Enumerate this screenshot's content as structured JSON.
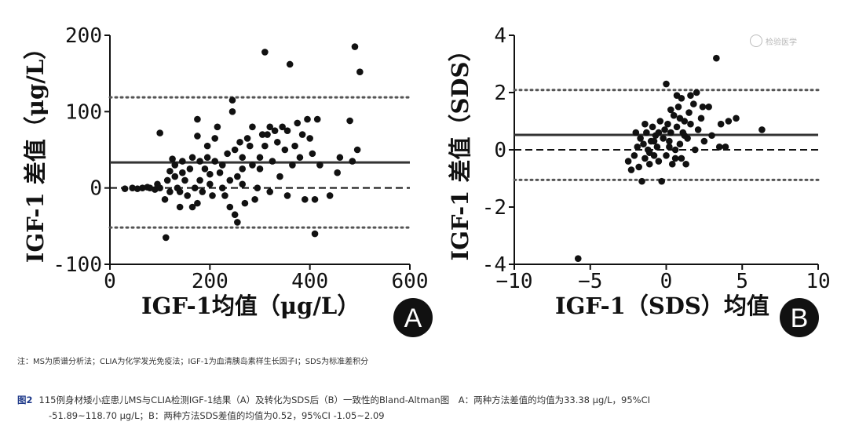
{
  "chart_data": [
    {
      "id": "A",
      "type": "scatter",
      "badge": "A",
      "xlabel": "IGF-1均值（μg/L）",
      "ylabel": "IGF-1 差值（μg/L）",
      "xlim": [
        0,
        600
      ],
      "ylim": [
        -100,
        200
      ],
      "xticks": [
        "0",
        "200",
        "400",
        "600"
      ],
      "yticks": [
        "-100",
        "0",
        "100",
        "200"
      ],
      "mean_line": 33.38,
      "upper_loa": 118.7,
      "lower_loa": -51.89,
      "zero_line": 0,
      "points": [
        [
          30,
          -1
        ],
        [
          45,
          0
        ],
        [
          55,
          -1
        ],
        [
          65,
          0
        ],
        [
          75,
          1
        ],
        [
          80,
          0
        ],
        [
          90,
          -2
        ],
        [
          95,
          5
        ],
        [
          100,
          0
        ],
        [
          100,
          72
        ],
        [
          110,
          -15
        ],
        [
          112,
          -65
        ],
        [
          115,
          10
        ],
        [
          120,
          -5
        ],
        [
          120,
          22
        ],
        [
          125,
          38
        ],
        [
          130,
          15
        ],
        [
          130,
          30
        ],
        [
          135,
          0
        ],
        [
          140,
          -25
        ],
        [
          140,
          -5
        ],
        [
          145,
          20
        ],
        [
          145,
          35
        ],
        [
          150,
          10
        ],
        [
          155,
          -10
        ],
        [
          160,
          25
        ],
        [
          165,
          40
        ],
        [
          165,
          -25
        ],
        [
          170,
          0
        ],
        [
          175,
          68
        ],
        [
          175,
          -20
        ],
        [
          175,
          90
        ],
        [
          180,
          10
        ],
        [
          180,
          35
        ],
        [
          185,
          -5
        ],
        [
          190,
          25
        ],
        [
          195,
          40
        ],
        [
          195,
          55
        ],
        [
          200,
          5
        ],
        [
          200,
          18
        ],
        [
          205,
          -10
        ],
        [
          210,
          35
        ],
        [
          210,
          65
        ],
        [
          215,
          80
        ],
        [
          220,
          20
        ],
        [
          225,
          0
        ],
        [
          225,
          30
        ],
        [
          230,
          -10
        ],
        [
          235,
          45
        ],
        [
          240,
          10
        ],
        [
          240,
          -25
        ],
        [
          245,
          100
        ],
        [
          245,
          115
        ],
        [
          250,
          50
        ],
        [
          250,
          -35
        ],
        [
          255,
          -45
        ],
        [
          255,
          15
        ],
        [
          260,
          60
        ],
        [
          265,
          5
        ],
        [
          265,
          25
        ],
        [
          265,
          40
        ],
        [
          270,
          -20
        ],
        [
          275,
          65
        ],
        [
          280,
          55
        ],
        [
          285,
          80
        ],
        [
          285,
          30
        ],
        [
          290,
          -15
        ],
        [
          295,
          0
        ],
        [
          300,
          40
        ],
        [
          300,
          25
        ],
        [
          305,
          70
        ],
        [
          310,
          55
        ],
        [
          310,
          178
        ],
        [
          315,
          70
        ],
        [
          320,
          -5
        ],
        [
          320,
          80
        ],
        [
          325,
          35
        ],
        [
          330,
          75
        ],
        [
          335,
          60
        ],
        [
          340,
          15
        ],
        [
          345,
          80
        ],
        [
          350,
          50
        ],
        [
          355,
          75
        ],
        [
          355,
          -10
        ],
        [
          360,
          162
        ],
        [
          365,
          30
        ],
        [
          370,
          55
        ],
        [
          375,
          85
        ],
        [
          380,
          40
        ],
        [
          385,
          70
        ],
        [
          390,
          -15
        ],
        [
          395,
          90
        ],
        [
          400,
          65
        ],
        [
          405,
          45
        ],
        [
          410,
          -15
        ],
        [
          410,
          -60
        ],
        [
          415,
          90
        ],
        [
          420,
          30
        ],
        [
          440,
          -10
        ],
        [
          455,
          20
        ],
        [
          460,
          40
        ],
        [
          480,
          88
        ],
        [
          485,
          35
        ],
        [
          490,
          185
        ],
        [
          495,
          50
        ],
        [
          500,
          152
        ]
      ]
    },
    {
      "id": "B",
      "type": "scatter",
      "badge": "B",
      "xlabel": "IGF-1（SDS）均值",
      "ylabel": "IGF-1 差值（SDS）",
      "xlim": [
        -10,
        10
      ],
      "ylim": [
        -4,
        4
      ],
      "xticks": [
        "−10",
        "−5",
        "0",
        "5",
        "10"
      ],
      "yticks": [
        "-4",
        "-2",
        "0",
        "2",
        "4"
      ],
      "mean_line": 0.52,
      "upper_loa": 2.09,
      "lower_loa": -1.05,
      "zero_line": 0,
      "points": [
        [
          -5.8,
          -3.8
        ],
        [
          -2.5,
          -0.4
        ],
        [
          -2.3,
          -0.7
        ],
        [
          -2.1,
          -0.2
        ],
        [
          -1.9,
          0.1
        ],
        [
          -1.8,
          -0.6
        ],
        [
          -1.7,
          0.4
        ],
        [
          -1.6,
          -1.1
        ],
        [
          -1.5,
          0.2
        ],
        [
          -1.4,
          -0.3
        ],
        [
          -1.3,
          0.6
        ],
        [
          -1.2,
          0.0
        ],
        [
          -1.1,
          -0.5
        ],
        [
          -1.0,
          0.3
        ],
        [
          -0.9,
          0.8
        ],
        [
          -0.8,
          -0.2
        ],
        [
          -0.7,
          0.5
        ],
        [
          -0.6,
          0.1
        ],
        [
          -0.5,
          -0.4
        ],
        [
          -0.4,
          1.0
        ],
        [
          -0.3,
          -1.1
        ],
        [
          -0.2,
          0.4
        ],
        [
          -0.1,
          0.7
        ],
        [
          0.0,
          2.3
        ],
        [
          0.0,
          -0.2
        ],
        [
          0.1,
          0.9
        ],
        [
          0.2,
          0.3
        ],
        [
          0.3,
          0.6
        ],
        [
          0.4,
          -0.5
        ],
        [
          0.5,
          1.2
        ],
        [
          0.6,
          0.0
        ],
        [
          0.7,
          0.8
        ],
        [
          0.8,
          1.5
        ],
        [
          0.9,
          0.2
        ],
        [
          1.0,
          1.8
        ],
        [
          1.0,
          -0.3
        ],
        [
          1.1,
          0.6
        ],
        [
          1.2,
          1.0
        ],
        [
          1.3,
          -0.5
        ],
        [
          1.4,
          0.4
        ],
        [
          1.5,
          1.3
        ],
        [
          1.6,
          0.9
        ],
        [
          1.8,
          1.6
        ],
        [
          1.9,
          0.0
        ],
        [
          2.0,
          2.0
        ],
        [
          2.1,
          0.7
        ],
        [
          2.3,
          1.1
        ],
        [
          2.5,
          0.3
        ],
        [
          2.8,
          1.5
        ],
        [
          3.0,
          0.5
        ],
        [
          3.3,
          3.2
        ],
        [
          3.6,
          0.9
        ],
        [
          3.9,
          0.1
        ],
        [
          4.1,
          1.0
        ],
        [
          4.6,
          1.1
        ],
        [
          -0.5,
          0.6
        ],
        [
          0.3,
          1.4
        ],
        [
          0.9,
          1.1
        ],
        [
          1.6,
          1.9
        ],
        [
          -1.4,
          0.9
        ],
        [
          2.4,
          1.5
        ],
        [
          -0.8,
          0.3
        ],
        [
          0.6,
          -0.3
        ],
        [
          1.2,
          0.5
        ],
        [
          -2.0,
          0.6
        ],
        [
          0.2,
          0.1
        ],
        [
          0.7,
          1.9
        ],
        [
          -1.1,
          -0.1
        ],
        [
          6.3,
          0.7
        ],
        [
          3.5,
          0.1
        ]
      ]
    }
  ],
  "note": "注：MS为质谱分析法；CLIA为化学发光免疫法；IGF-1为血清胰岛素样生长因子Ⅰ；SDS为标准差积分",
  "caption": {
    "fig_no": "图2",
    "line1": "115例身材矮小症患儿MS与CLIA检测IGF-1结果（A）及转化为SDS后（B）一致性的Bland-Altman图　A：两种方法差值的均值为33.38 μg/L，95%CI",
    "line2": "-51.89~118.70 μg/L；B：两种方法SDS差值的均值为0.52，95%CI -1.05~2.09"
  },
  "watermark": "检验医学"
}
